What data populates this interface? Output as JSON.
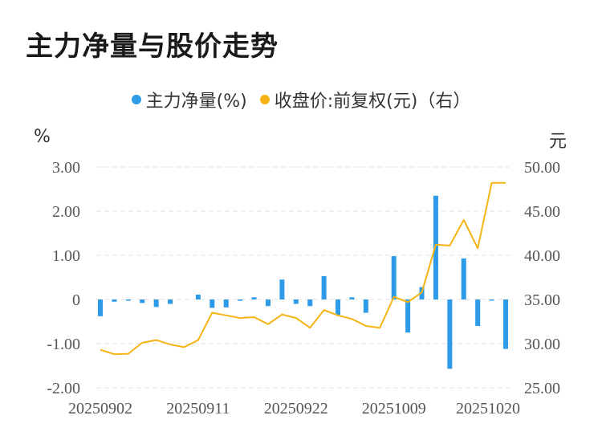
{
  "chart_data": {
    "type": "bar+line",
    "title": "主力净量与股价走势",
    "legend": [
      {
        "name": "主力净量(%)",
        "color": "#2d9be8"
      },
      {
        "name": "收盘价:前复权(元)（右）",
        "color": "#f5b414"
      }
    ],
    "y_left_unit": "%",
    "y_right_unit": "元",
    "y_left_ticks": [
      "3.00",
      "2.00",
      "1.00",
      "0",
      "-1.00",
      "-2.00"
    ],
    "y_left_range": [
      -2,
      3
    ],
    "y_right_ticks": [
      "50.00",
      "45.00",
      "40.00",
      "35.00",
      "30.00",
      "25.00"
    ],
    "y_right_range": [
      25,
      50
    ],
    "x_ticks": [
      {
        "label": "20250902",
        "index": 0
      },
      {
        "label": "20250911",
        "index": 7
      },
      {
        "label": "20250922",
        "index": 14
      },
      {
        "label": "20251009",
        "index": 21
      },
      {
        "label": "20251020",
        "index": 28
      }
    ],
    "bar_color": "#2d9be8",
    "line_color": "#f5b414",
    "bars": [
      -0.38,
      -0.05,
      -0.02,
      -0.08,
      -0.17,
      -0.1,
      0,
      0.11,
      -0.19,
      -0.18,
      -0.03,
      0.05,
      -0.15,
      0.45,
      -0.1,
      -0.15,
      0.53,
      -0.35,
      0.05,
      -0.3,
      0,
      0.98,
      -0.75,
      0.28,
      2.35,
      -1.57,
      0.93,
      -0.6,
      -0.02,
      -1.12
    ],
    "prices": [
      29.3,
      28.8,
      28.85,
      30.1,
      30.4,
      29.9,
      29.6,
      30.4,
      33.5,
      33.2,
      32.9,
      33.0,
      32.2,
      33.3,
      32.9,
      31.8,
      33.8,
      33.2,
      32.8,
      32.0,
      31.8,
      35.3,
      34.7,
      35.8,
      41.2,
      41.1,
      44.0,
      40.8,
      48.2,
      48.2
    ]
  }
}
